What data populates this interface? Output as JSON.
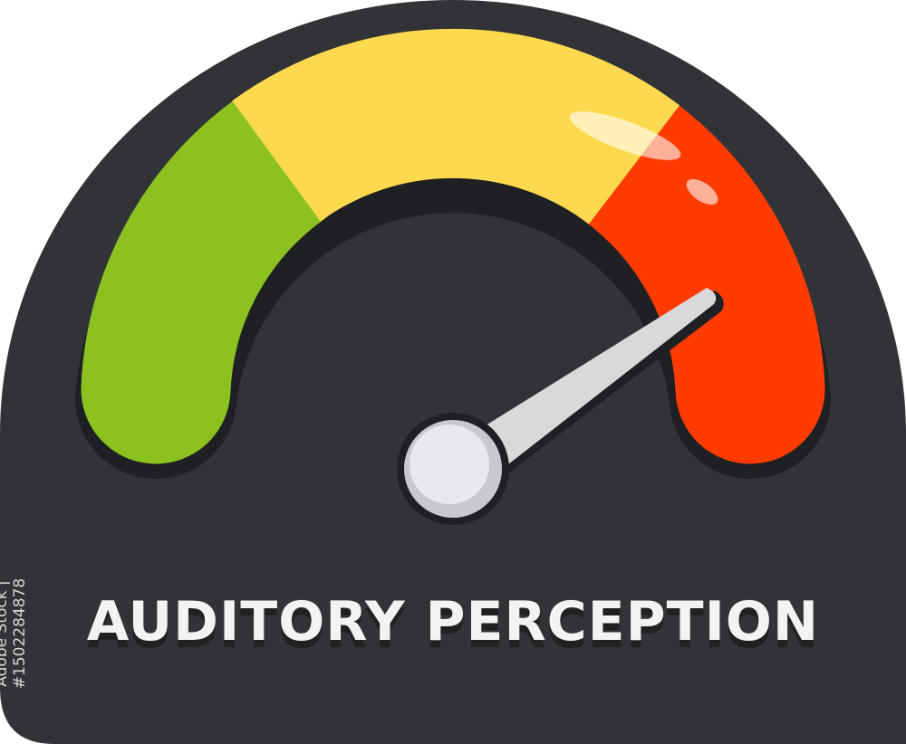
{
  "label": "AUDITORY PERCEPTION",
  "stock_id": "Adobe Stock | #1502284878",
  "gauge": {
    "needle_level_fraction": 0.88,
    "segments": [
      "green",
      "yellow",
      "red"
    ]
  },
  "colors": {
    "background": "#323337",
    "green": "#8cc21f",
    "yellow": "#fcd94e",
    "red": "#ff3b00",
    "needle": "#d9d9dc",
    "text": "#f3f3f3"
  }
}
